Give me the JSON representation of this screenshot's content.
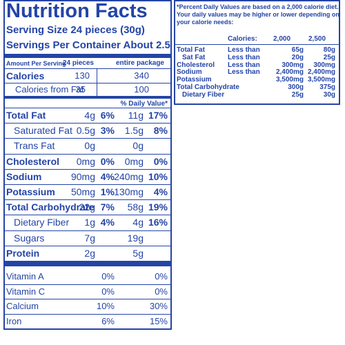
{
  "left_panel": {
    "title": "Nutrition Facts",
    "serving_size": "Serving Size 24 pieces (30g)",
    "servings_per_container": "Servings Per Container About 2.5",
    "header": [
      "Amount Per Serving",
      "24 pieces",
      "entire package"
    ],
    "calories": [
      "Calories",
      "130",
      "340"
    ],
    "calories_from_fat": [
      "Calories from Fat",
      "35",
      "100"
    ],
    "daily_value_header": "% Daily Value*",
    "nutrients": [
      [
        "Total Fat",
        "4g",
        "6%",
        "11g",
        "17%"
      ],
      [
        "Saturated Fat",
        "0.5g",
        "3%",
        "1.5g",
        "8%"
      ],
      [
        "Trans Fat",
        "0g",
        "",
        "0g",
        ""
      ],
      [
        "Cholesterol",
        "0mg",
        "0%",
        "0mg",
        "0%"
      ],
      [
        "Sodium",
        "90mg",
        "4%",
        "240mg",
        "10%"
      ],
      [
        "Potassium",
        "50mg",
        "1%",
        "130mg",
        "4%"
      ],
      [
        "Total Carbohydrate",
        "22g",
        "7%",
        "58g",
        "19%"
      ],
      [
        "Dietary Fiber",
        "1g",
        "4%",
        "4g",
        "16%"
      ],
      [
        "Sugars",
        "7g",
        "",
        "19g",
        ""
      ],
      [
        "Protein",
        "2g",
        "",
        "5g",
        ""
      ]
    ],
    "vitamins": [
      [
        "Vitamin A",
        "0%",
        "0%"
      ],
      [
        "Vitamin C",
        "0%",
        "0%"
      ],
      [
        "Calcium",
        "10%",
        "30%"
      ],
      [
        "Iron",
        "6%",
        "15%"
      ]
    ]
  },
  "right_panel": {
    "footnote": [
      "*Percent Daily Values are based on a 2,000 calorie diet.",
      "Your daily values may be higher or lower depending on",
      "your calorie needs:"
    ],
    "header": [
      "Calories:",
      "2,000",
      "2,500"
    ],
    "rows": [
      [
        "Total Fat",
        "Less than",
        "65g",
        "80g"
      ],
      [
        "Sat Fat",
        "Less than",
        "20g",
        "25g"
      ],
      [
        "Cholesterol",
        "Less than",
        "300mg",
        "300mg"
      ],
      [
        "Sodium",
        "Less than",
        "2,400mg",
        "2,400mg"
      ],
      [
        "Potassium",
        "",
        "3,500mg",
        "3,500mg"
      ],
      [
        "Total Carbohydrate",
        "",
        "300g",
        "375g"
      ],
      [
        "Dietary Fiber",
        "",
        "25g",
        "30g"
      ]
    ]
  }
}
